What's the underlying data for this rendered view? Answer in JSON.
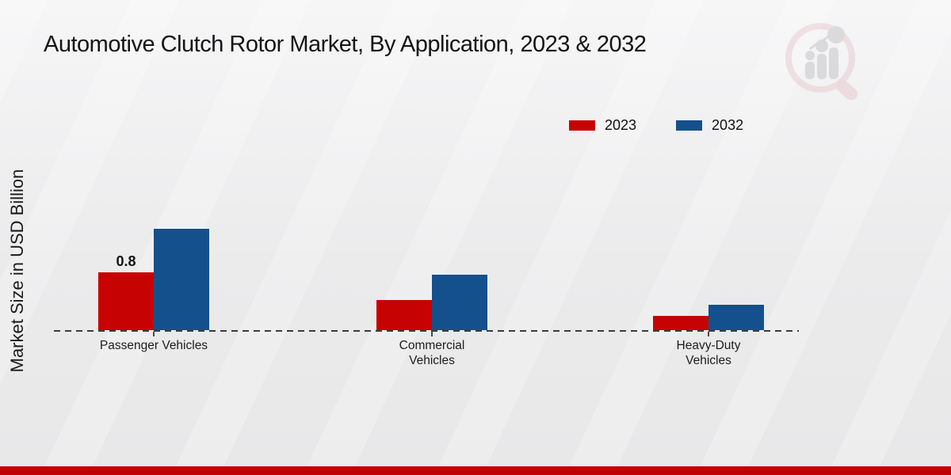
{
  "title": "Automotive Clutch Rotor Market, By Application, 2023 & 2032",
  "y_axis_label": "Market Size in USD Billion",
  "legend": [
    {
      "label": "2023",
      "color": "#c70202"
    },
    {
      "label": "2032",
      "color": "#14508c"
    }
  ],
  "colors": {
    "bar_2023": "#c70202",
    "bar_2032": "#14508c",
    "footer_stripe": "#c00000",
    "baseline": "#3b3b3b"
  },
  "icons": {
    "watermark": "market-research-future-logo-watermark"
  },
  "chart_data": {
    "type": "bar",
    "categories": [
      "Passenger Vehicles",
      "Commercial Vehicles",
      "Heavy-Duty Vehicles"
    ],
    "series": [
      {
        "name": "2023",
        "color": "#c70202",
        "values": [
          0.8,
          0.42,
          0.2
        ]
      },
      {
        "name": "2032",
        "color": "#14508c",
        "values": [
          1.4,
          0.77,
          0.35
        ]
      }
    ],
    "annotations": [
      {
        "category_index": 0,
        "series_index": 0,
        "text": "0.8"
      }
    ],
    "title": "Automotive Clutch Rotor Market, By Application, 2023 & 2032",
    "xlabel": "",
    "ylabel": "Market Size in USD Billion",
    "ylim": [
      0,
      1.6
    ],
    "grid": false,
    "legend_position": "upper-right",
    "baseline_style": "dashed"
  }
}
